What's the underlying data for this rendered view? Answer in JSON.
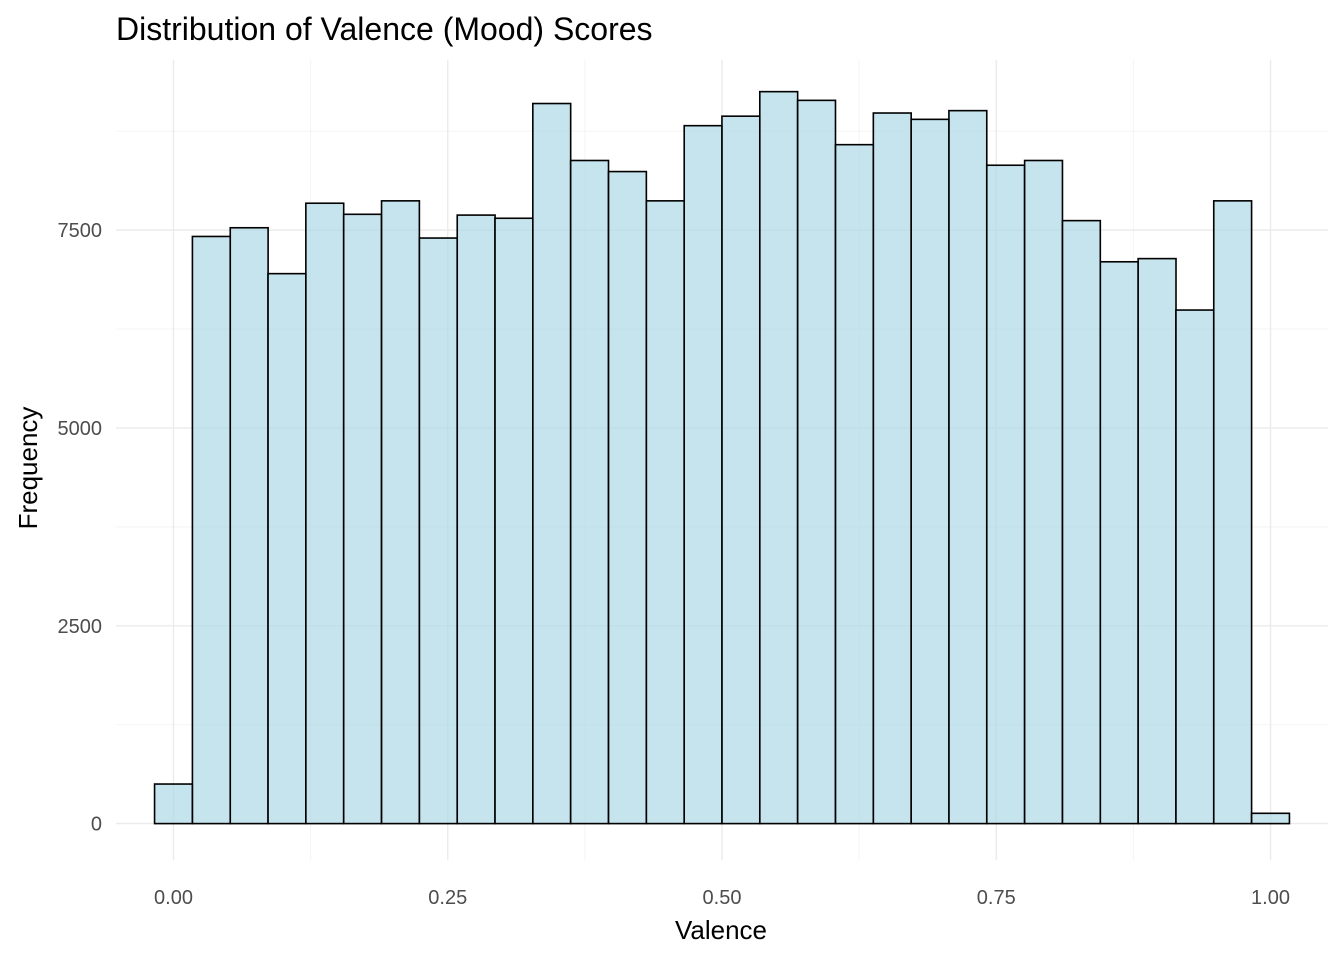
{
  "chart_data": {
    "type": "bar",
    "title": "Distribution of Valence (Mood) Scores",
    "xlabel": "Valence",
    "ylabel": "Frequency",
    "bar_color": "#add8e6",
    "bar_opacity": 0.7,
    "border_color": "#000000",
    "grid": true,
    "xlim": [
      -0.0524,
      1.0524
    ],
    "ylim": [
      -460,
      9650
    ],
    "x_ticks": [
      0.0,
      0.25,
      0.5,
      0.75,
      1.0
    ],
    "x_tick_labels": [
      "0.00",
      "0.25",
      "0.50",
      "0.75",
      "1.00"
    ],
    "y_ticks": [
      0,
      2500,
      5000,
      7500
    ],
    "y_tick_labels": [
      "0",
      "2500",
      "5000",
      "7500"
    ],
    "bin_width": 0.0345,
    "bin_centers": [
      0.0,
      0.0345,
      0.069,
      0.1034,
      0.1379,
      0.1724,
      0.2069,
      0.2414,
      0.2759,
      0.3103,
      0.3448,
      0.3793,
      0.4138,
      0.4483,
      0.4828,
      0.5172,
      0.5517,
      0.5862,
      0.6207,
      0.6552,
      0.6897,
      0.7241,
      0.7586,
      0.7931,
      0.8276,
      0.8621,
      0.8966,
      0.931,
      0.9655,
      1.0
    ],
    "values": [
      500,
      7420,
      7530,
      6950,
      7840,
      7700,
      7870,
      7400,
      7690,
      7650,
      9100,
      8380,
      8240,
      7870,
      8820,
      8940,
      9250,
      9140,
      8580,
      8980,
      8900,
      9010,
      8320,
      8380,
      7620,
      7100,
      7140,
      6490,
      7870,
      130
    ]
  }
}
